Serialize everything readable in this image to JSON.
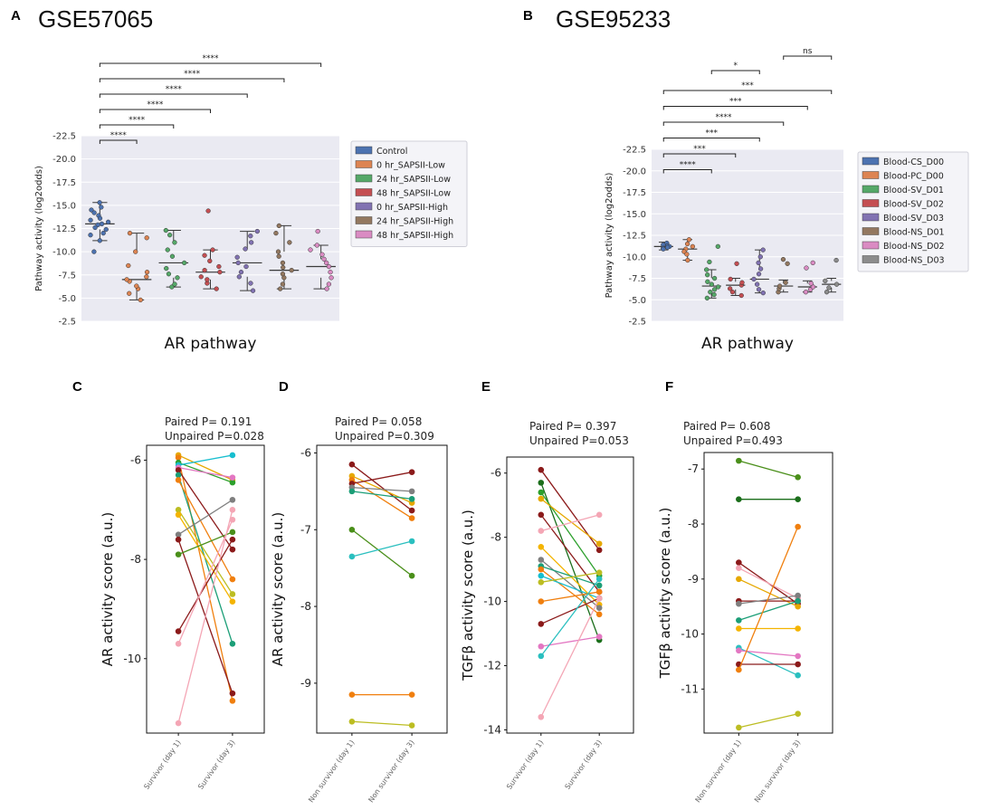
{
  "panel_letters": {
    "A": "A",
    "B": "B",
    "C": "C",
    "D": "D",
    "E": "E",
    "F": "F"
  },
  "chart_data": [
    {
      "id": "A",
      "type": "box",
      "title": "GSE57065",
      "xlabel": "AR pathway",
      "ylabel": "Pathway activity (log2odds)",
      "ylim": [
        -22.5,
        -2.5
      ],
      "yticks": [
        -2.5,
        -5.0,
        -7.5,
        -10.0,
        -12.5,
        -15.0,
        -17.5,
        -20.0,
        -22.5
      ],
      "ytick_labels": [
        "-2.5",
        "-5.0",
        "-7.5",
        "-10.0",
        "-12.5",
        "-15.0",
        "-17.5",
        "-20.0",
        "-22.5"
      ],
      "groups": [
        {
          "name": "Control",
          "color": "#4c72b0",
          "q1": -14.0,
          "median": -13.0,
          "q3": -12.4,
          "whislo": -15.3,
          "whishi": -11.2,
          "points": [
            -15.3,
            -14.8,
            -14.5,
            -14.2,
            -13.9,
            -13.6,
            -13.4,
            -13.2,
            -13.0,
            -12.9,
            -12.6,
            -12.4,
            -12.0,
            -11.8,
            -11.2,
            -10.0
          ]
        },
        {
          "name": "0 hr_SAPSII-Low",
          "color": "#dd8452",
          "q1": -10.0,
          "median": -7.0,
          "q3": -5.8,
          "whislo": -12.0,
          "whishi": -4.8,
          "points": [
            -4.8,
            -5.5,
            -6.0,
            -6.3,
            -6.8,
            -7.0,
            -7.3,
            -7.8,
            -8.5,
            -10.0,
            -11.5,
            -12.0
          ]
        },
        {
          "name": "24 hr_SAPSII-Low",
          "color": "#55a868",
          "q1": -11.0,
          "median": -8.8,
          "q3": -7.2,
          "whislo": -12.3,
          "whishi": -6.2,
          "points": [
            -6.2,
            -6.5,
            -7.2,
            -7.6,
            -8.2,
            -8.8,
            -9.5,
            -10.2,
            -11.0,
            -11.8,
            -12.3
          ]
        },
        {
          "name": "48 hr_SAPSII-Low",
          "color": "#c44e52",
          "q1": -8.8,
          "median": -7.8,
          "q3": -7.0,
          "whislo": -10.2,
          "whishi": -6.0,
          "points": [
            -6.0,
            -6.6,
            -7.0,
            -7.3,
            -7.8,
            -8.0,
            -8.4,
            -9.0,
            -9.6,
            -10.2,
            -14.4
          ]
        },
        {
          "name": "0 hr_SAPSII-High",
          "color": "#8172b2",
          "q1": -10.3,
          "median": -8.8,
          "q3": -7.3,
          "whislo": -12.2,
          "whishi": -5.8,
          "points": [
            -5.8,
            -6.6,
            -7.3,
            -7.8,
            -8.4,
            -8.8,
            -9.4,
            -10.3,
            -11.0,
            -11.7,
            -12.2
          ]
        },
        {
          "name": "24 hr_SAPSII-High",
          "color": "#937860",
          "q1": -10.0,
          "median": -8.0,
          "q3": -7.2,
          "whislo": -12.8,
          "whishi": -6.0,
          "points": [
            -6.0,
            -6.5,
            -7.2,
            -7.6,
            -8.0,
            -8.3,
            -8.8,
            -9.5,
            -10.0,
            -11.0,
            -12.0,
            -12.8
          ]
        },
        {
          "name": "48 hr_SAPSII-High",
          "color": "#da8bc3",
          "q1": -9.2,
          "median": -8.4,
          "q3": -7.2,
          "whislo": -10.7,
          "whishi": -6.0,
          "points": [
            -6.0,
            -6.5,
            -7.2,
            -7.8,
            -8.4,
            -8.8,
            -9.2,
            -9.7,
            -10.2,
            -10.7,
            -12.2
          ]
        }
      ],
      "brackets": [
        {
          "from": 0,
          "to": 1,
          "label": "****"
        },
        {
          "from": 0,
          "to": 2,
          "label": "****"
        },
        {
          "from": 0,
          "to": 3,
          "label": "****"
        },
        {
          "from": 0,
          "to": 4,
          "label": "****"
        },
        {
          "from": 0,
          "to": 5,
          "label": "****"
        },
        {
          "from": 0,
          "to": 6,
          "label": "****"
        }
      ]
    },
    {
      "id": "B",
      "type": "box",
      "title": "GSE95233",
      "xlabel": "AR pathway",
      "ylabel": "Pathway activity (log2odds)",
      "ylim": [
        -22.5,
        -2.5
      ],
      "yticks": [
        -2.5,
        -5.0,
        -7.5,
        -10.0,
        -12.5,
        -15.0,
        -17.5,
        -20.0,
        -22.5
      ],
      "ytick_labels": [
        "-2.5",
        "-5.0",
        "-7.5",
        "-10.0",
        "-12.5",
        "-15.0",
        "-17.5",
        "-20.0",
        "-22.5"
      ],
      "groups": [
        {
          "name": "Blood-CS_D00",
          "color": "#4c72b0",
          "q1": -11.4,
          "median": -11.2,
          "q3": -11.0,
          "whislo": -11.7,
          "whishi": -10.8,
          "points": [
            -11.6,
            -11.4,
            -11.3,
            -11.2,
            -11.1,
            -11.0,
            -10.9
          ]
        },
        {
          "name": "Blood-PC_D00",
          "color": "#dd8452",
          "q1": -11.3,
          "median": -10.9,
          "q3": -10.4,
          "whislo": -12.0,
          "whishi": -9.6,
          "points": [
            -12.0,
            -11.5,
            -11.2,
            -10.9,
            -10.6,
            -10.3,
            -9.6
          ]
        },
        {
          "name": "Blood-SV_D01",
          "color": "#55a868",
          "q1": -7.5,
          "median": -6.6,
          "q3": -5.8,
          "whislo": -8.5,
          "whishi": -5.2,
          "points": [
            -5.2,
            -5.6,
            -5.9,
            -6.2,
            -6.5,
            -6.8,
            -7.1,
            -7.5,
            -7.9,
            -8.5,
            -9.4,
            -11.2
          ]
        },
        {
          "name": "Blood-SV_D02",
          "color": "#c44e52",
          "q1": -7.1,
          "median": -6.7,
          "q3": -6.2,
          "whislo": -7.5,
          "whishi": -5.5,
          "points": [
            -5.5,
            -5.9,
            -6.3,
            -6.7,
            -7.0,
            -7.4,
            -9.2
          ]
        },
        {
          "name": "Blood-SV_D03",
          "color": "#8172b2",
          "q1": -8.4,
          "median": -7.4,
          "q3": -6.2,
          "whislo": -10.8,
          "whishi": -5.8,
          "points": [
            -5.8,
            -6.2,
            -6.8,
            -7.4,
            -8.0,
            -8.6,
            -9.3,
            -10.0,
            -10.8
          ]
        },
        {
          "name": "Blood-NS_D01",
          "color": "#937860",
          "q1": -6.9,
          "median": -6.6,
          "q3": -6.2,
          "whislo": -7.3,
          "whishi": -5.9,
          "points": [
            -5.9,
            -6.3,
            -6.6,
            -7.0,
            -9.2,
            -9.7
          ]
        },
        {
          "name": "Blood-NS_D02",
          "color": "#da8bc3",
          "q1": -6.9,
          "median": -6.5,
          "q3": -6.1,
          "whislo": -7.2,
          "whishi": -5.9,
          "points": [
            -5.9,
            -6.2,
            -6.5,
            -6.9,
            -8.7,
            -9.3
          ]
        },
        {
          "name": "Blood-NS_D03",
          "color": "#8c8c8c",
          "q1": -7.2,
          "median": -6.8,
          "q3": -6.4,
          "whislo": -7.5,
          "whishi": -5.9,
          "points": [
            -5.9,
            -6.4,
            -6.8,
            -7.2,
            -9.6
          ]
        }
      ],
      "brackets": [
        {
          "from": 2,
          "to": 4,
          "label": "*"
        },
        {
          "from": 5,
          "to": 7,
          "label": "ns"
        },
        {
          "from": 0,
          "to": 7,
          "label": "***"
        },
        {
          "from": 0,
          "to": 6,
          "label": "***"
        },
        {
          "from": 0,
          "to": 5,
          "label": "****"
        },
        {
          "from": 0,
          "to": 4,
          "label": "***"
        },
        {
          "from": 0,
          "to": 3,
          "label": "***"
        },
        {
          "from": 0,
          "to": 2,
          "label": "****"
        }
      ]
    },
    {
      "id": "C",
      "type": "paired-line",
      "ylabel": "AR activity score (a.u.)",
      "categories": [
        "Survivor (day 1)",
        "Survivor (day 3)"
      ],
      "ylim": [
        -11.5,
        -5.7
      ],
      "yticks": [
        -6,
        -8,
        -10
      ],
      "ytick_labels": [
        "-6",
        "-8",
        "-10"
      ],
      "annotation": [
        "Paired P= 0.191",
        "Unpaired P=0.028"
      ],
      "series": [
        {
          "color": "#e6a800",
          "values": [
            -5.9,
            -6.4
          ]
        },
        {
          "color": "#f07f0e",
          "values": [
            -5.95,
            -10.85
          ]
        },
        {
          "color": "#2ca02c",
          "values": [
            -6.05,
            -6.45
          ]
        },
        {
          "color": "#17becf",
          "values": [
            -6.1,
            -5.9
          ]
        },
        {
          "color": "#e377c2",
          "values": [
            -6.15,
            -6.35
          ]
        },
        {
          "color": "#8b1a1a",
          "values": [
            -6.2,
            -7.8
          ]
        },
        {
          "color": "#1b9e77",
          "values": [
            -6.3,
            -9.7
          ]
        },
        {
          "color": "#f07f0e",
          "values": [
            -6.4,
            -8.4
          ]
        },
        {
          "color": "#bcbd22",
          "values": [
            -7.0,
            -8.7
          ]
        },
        {
          "color": "#f4b400",
          "values": [
            -7.1,
            -8.85
          ]
        },
        {
          "color": "#7f7f7f",
          "values": [
            -7.5,
            -6.8
          ]
        },
        {
          "color": "#8b1a1a",
          "values": [
            -7.6,
            -10.7
          ]
        },
        {
          "color": "#4a8f1a",
          "values": [
            -7.9,
            -7.45
          ]
        },
        {
          "color": "#8b1a1a",
          "values": [
            -9.45,
            -7.6
          ]
        },
        {
          "color": "#f4a6b5",
          "values": [
            -9.7,
            -7.2
          ]
        },
        {
          "color": "#f4a6b5",
          "values": [
            -11.3,
            -7.0
          ]
        }
      ]
    },
    {
      "id": "D",
      "type": "paired-line",
      "ylabel": "AR activity score (a.u.)",
      "categories": [
        "Non survivor (day 1)",
        "Non survivor (day 3)"
      ],
      "ylim": [
        -9.65,
        -5.9
      ],
      "yticks": [
        -6,
        -7,
        -8,
        -9
      ],
      "ytick_labels": [
        "-6",
        "-7",
        "-8",
        "-9"
      ],
      "annotation": [
        "Paired P= 0.058",
        "Unpaired P=0.309"
      ],
      "series": [
        {
          "color": "#8b1a1a",
          "values": [
            -6.15,
            -6.75
          ]
        },
        {
          "color": "#e6a800",
          "values": [
            -6.3,
            -6.65
          ]
        },
        {
          "color": "#f07f0e",
          "values": [
            -6.35,
            -6.85
          ]
        },
        {
          "color": "#8b1a1a",
          "values": [
            -6.4,
            -6.25
          ]
        },
        {
          "color": "#7f7f7f",
          "values": [
            -6.45,
            -6.5
          ]
        },
        {
          "color": "#1b9e77",
          "values": [
            -6.5,
            -6.6
          ]
        },
        {
          "color": "#4a8f1a",
          "values": [
            -7.0,
            -7.6
          ]
        },
        {
          "color": "#2abfbf",
          "values": [
            -7.35,
            -7.15
          ]
        },
        {
          "color": "#bcbd22",
          "values": [
            -9.5,
            -9.55
          ]
        },
        {
          "color": "#f07f0e",
          "values": [
            -9.15,
            -9.15
          ]
        }
      ]
    },
    {
      "id": "E",
      "type": "paired-line",
      "ylabel": "TGFβ activity score (a.u.)",
      "categories": [
        "Survivor (day 1)",
        "Survivor (day 3)"
      ],
      "ylim": [
        -14.1,
        -5.5
      ],
      "yticks": [
        -6,
        -8,
        -10,
        -12,
        -14
      ],
      "ytick_labels": [
        "-6",
        "-8",
        "-10",
        "-12",
        "-14"
      ],
      "annotation": [
        "Paired P= 0.397",
        "Unpaired P=0.053"
      ],
      "series": [
        {
          "color": "#8b1a1a",
          "values": [
            -5.9,
            -8.4
          ]
        },
        {
          "color": "#1b6e1b",
          "values": [
            -6.3,
            -11.2
          ]
        },
        {
          "color": "#2ca02c",
          "values": [
            -6.6,
            -9.2
          ]
        },
        {
          "color": "#e6a800",
          "values": [
            -6.8,
            -8.2
          ]
        },
        {
          "color": "#8b1a1a",
          "values": [
            -7.3,
            -9.7
          ]
        },
        {
          "color": "#f4a6b5",
          "values": [
            -7.8,
            -7.3
          ]
        },
        {
          "color": "#f4b400",
          "values": [
            -8.3,
            -10.1
          ]
        },
        {
          "color": "#7f7f7f",
          "values": [
            -8.7,
            -10.2
          ]
        },
        {
          "color": "#1b9e77",
          "values": [
            -8.9,
            -9.5
          ]
        },
        {
          "color": "#f07f0e",
          "values": [
            -9.0,
            -10.4
          ]
        },
        {
          "color": "#17becf",
          "values": [
            -9.2,
            -9.9
          ]
        },
        {
          "color": "#bcbd22",
          "values": [
            -9.4,
            -9.1
          ]
        },
        {
          "color": "#f07f0e",
          "values": [
            -10.0,
            -9.7
          ]
        },
        {
          "color": "#8b1a1a",
          "values": [
            -10.7,
            -9.9
          ]
        },
        {
          "color": "#e377c2",
          "values": [
            -11.4,
            -11.1
          ]
        },
        {
          "color": "#2abfbf",
          "values": [
            -11.7,
            -9.3
          ]
        },
        {
          "color": "#f4a6b5",
          "values": [
            -13.6,
            -9.9
          ]
        }
      ]
    },
    {
      "id": "F",
      "type": "paired-line",
      "ylabel": "TGFβ activity score (a.u.)",
      "categories": [
        "Non survivor (day 1)",
        "Non survivor (day 3)"
      ],
      "ylim": [
        -11.8,
        -6.7
      ],
      "yticks": [
        -7,
        -8,
        -9,
        -10,
        -11
      ],
      "ytick_labels": [
        "-7",
        "-8",
        "-9",
        "-10",
        "-11"
      ],
      "annotation": [
        "Paired P= 0.608",
        "Unpaired P=0.493"
      ],
      "series": [
        {
          "color": "#4a8f1a",
          "values": [
            -6.85,
            -7.15
          ]
        },
        {
          "color": "#1b6e1b",
          "values": [
            -7.55,
            -7.55
          ]
        },
        {
          "color": "#8b1a1a",
          "values": [
            -8.7,
            -9.45
          ]
        },
        {
          "color": "#f4a6b5",
          "values": [
            -8.8,
            -9.35
          ]
        },
        {
          "color": "#e6a800",
          "values": [
            -9.0,
            -9.5
          ]
        },
        {
          "color": "#8b1a1a",
          "values": [
            -9.4,
            -9.4
          ]
        },
        {
          "color": "#7f7f7f",
          "values": [
            -9.45,
            -9.3
          ]
        },
        {
          "color": "#1b9e77",
          "values": [
            -9.75,
            -9.4
          ]
        },
        {
          "color": "#f4b400",
          "values": [
            -9.9,
            -9.9
          ]
        },
        {
          "color": "#2abfbf",
          "values": [
            -10.25,
            -10.75
          ]
        },
        {
          "color": "#e377c2",
          "values": [
            -10.3,
            -10.4
          ]
        },
        {
          "color": "#8b1a1a",
          "values": [
            -10.55,
            -10.55
          ]
        },
        {
          "color": "#f07f0e",
          "values": [
            -10.65,
            -8.05
          ]
        },
        {
          "color": "#bcbd22",
          "values": [
            -11.7,
            -11.45
          ]
        }
      ]
    }
  ]
}
